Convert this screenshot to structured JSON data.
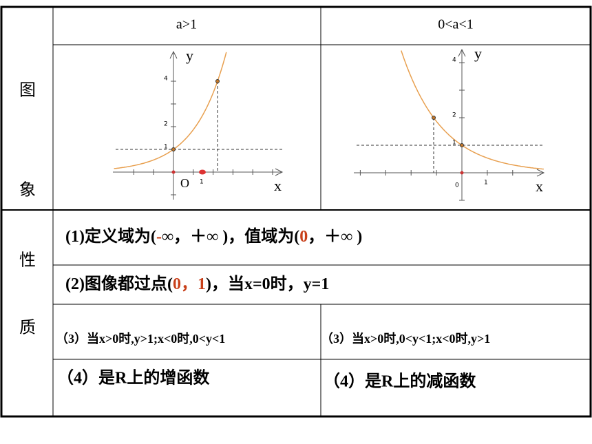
{
  "table": {
    "header": [
      "a>1",
      "0<a<1"
    ],
    "row_labels": {
      "graph": [
        "图",
        "象"
      ],
      "properties": [
        "性",
        "质"
      ]
    },
    "graphs": [
      {
        "y_label": "y",
        "x_label": "x",
        "origin": "O",
        "x_tick": "1",
        "y_ticks": [
          "1",
          "2",
          "4"
        ]
      },
      {
        "y_label": "y",
        "x_label": "x",
        "origin": "0",
        "x_tick": "1",
        "y_ticks": [
          "1",
          "2",
          "4"
        ]
      }
    ],
    "properties": [
      {
        "runs": [
          {
            "text": "(1)定义域为(",
            "accent": false
          },
          {
            "text": "-",
            "accent": true
          },
          {
            "text": "∞，＋∞ )，值域为(",
            "accent": false
          },
          {
            "text": "0",
            "accent": true
          },
          {
            "text": "，＋∞ )",
            "accent": false
          }
        ]
      },
      {
        "runs": [
          {
            "text": "(2)图像都过点(",
            "accent": false
          },
          {
            "text": "0，1",
            "accent": true
          },
          {
            "text": ")，当x=0时，y=1",
            "accent": false
          }
        ]
      },
      {
        "cells": [
          "（3）当x>0时,y>1;x<0时,0<y<1",
          "（3）当x>0时,0<y<1;x<0时,y>1"
        ]
      },
      {
        "cells": [
          "（4）是R上的增函数",
          "（4）是R上的减函数"
        ]
      }
    ]
  }
}
